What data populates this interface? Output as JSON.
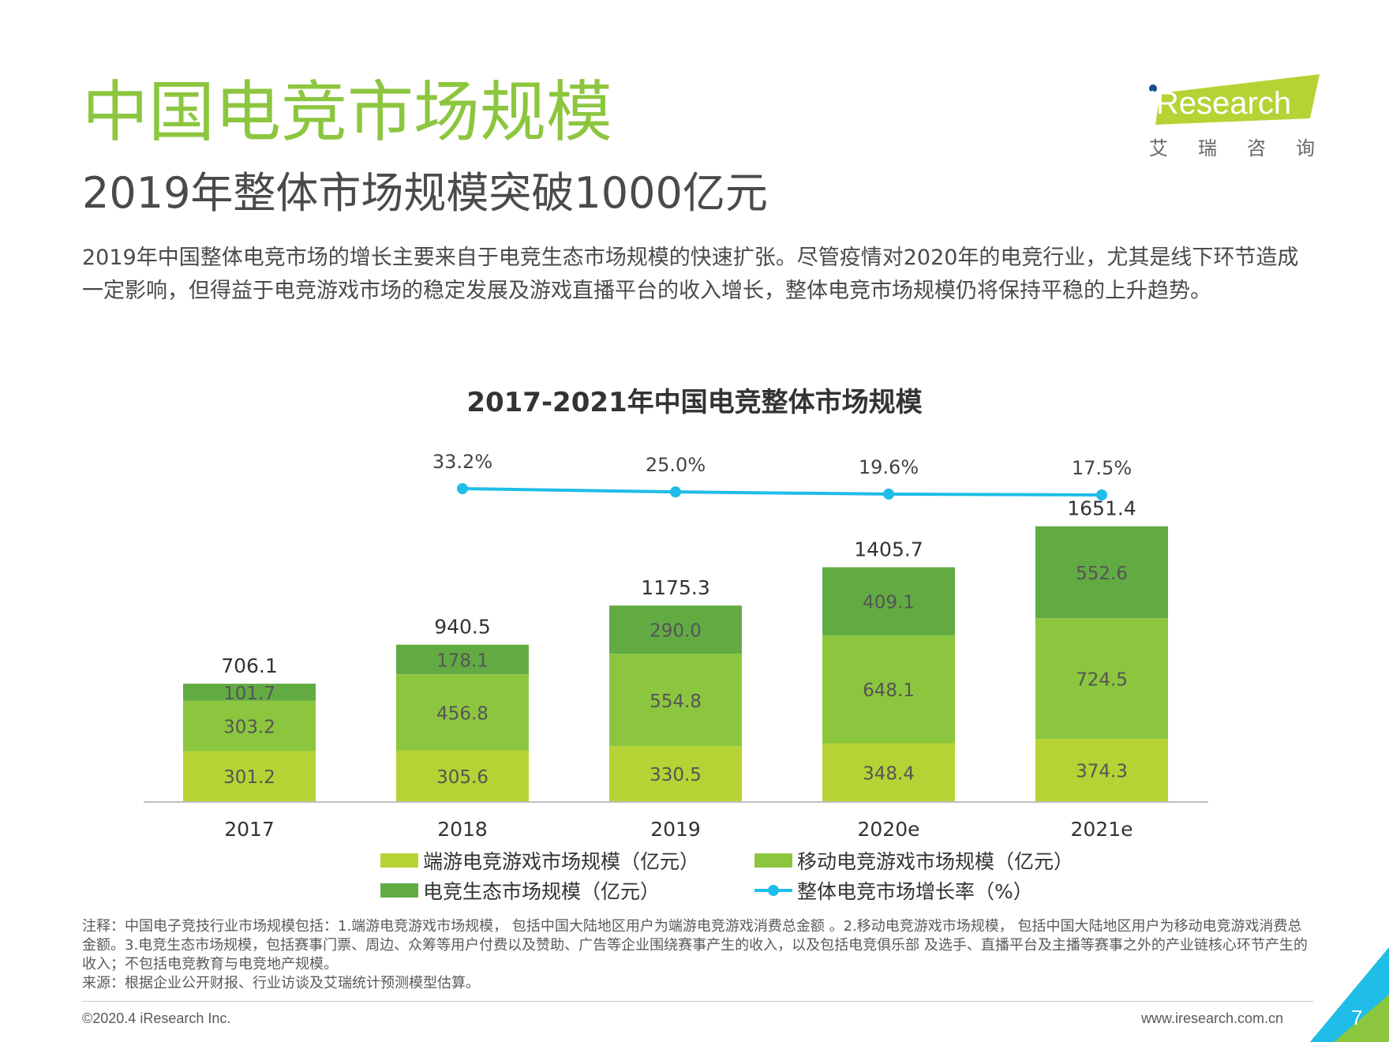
{
  "header": {
    "title": "中国电竞市场规模",
    "subtitle": "2019年整体市场规模突破1000亿元",
    "paragraph": "2019年中国整体电竞市场的增长主要来自于电竞生态市场规模的快速扩张。尽管疫情对2020年的电竞行业，尤其是线下环节造成一定影响，但得益于电竞游戏市场的稳定发展及游戏直播平台的收入增长，整体电竞市场规模仍将保持平稳的上升趋势。"
  },
  "logo": {
    "text": "iResearch",
    "cn": "艾瑞咨询"
  },
  "chart_data": {
    "type": "bar",
    "stacked": true,
    "title": "2017-2021年中国电竞整体市场规模",
    "categories": [
      "2017",
      "2018",
      "2019",
      "2020e",
      "2021e"
    ],
    "series": [
      {
        "name": "端游电竞游戏市场规模（亿元）",
        "type": "bar",
        "color": "#b5d334",
        "values": [
          301.2,
          305.6,
          330.5,
          348.4,
          374.3
        ]
      },
      {
        "name": "移动电竞游戏市场规模（亿元）",
        "type": "bar",
        "color": "#8cc63f",
        "values": [
          303.2,
          456.8,
          554.8,
          648.1,
          724.5
        ]
      },
      {
        "name": "电竞生态市场规模（亿元）",
        "type": "bar",
        "color": "#62ab43",
        "values": [
          101.7,
          178.1,
          290.0,
          409.1,
          552.6
        ]
      },
      {
        "name": "整体电竞市场增长率（%）",
        "type": "line",
        "color": "#1fbde8",
        "x": [
          "2018",
          "2019",
          "2020e",
          "2021e"
        ],
        "values": [
          33.2,
          25.0,
          19.6,
          17.5
        ],
        "labels": [
          "33.2%",
          "25.0%",
          "19.6%",
          "17.5%"
        ]
      }
    ],
    "totals": [
      706.1,
      940.5,
      1175.3,
      1405.7,
      1651.4
    ],
    "segment_labels": [
      [
        "301.2",
        "305.6",
        "330.5",
        "348.4",
        "374.3"
      ],
      [
        "303.2",
        "456.8",
        "554.8",
        "648.1",
        "724.5"
      ],
      [
        "101.7",
        "178.1",
        "290.0",
        "409.1",
        "552.6"
      ]
    ],
    "total_labels": [
      "706.1",
      "940.5",
      "1175.3",
      "1405.7",
      "1651.4"
    ],
    "legend_position": "bottom"
  },
  "legend": [
    {
      "label": "端游电竞游戏市场规模（亿元）",
      "color": "#b5d334"
    },
    {
      "label": "移动电竞游戏市场规模（亿元）",
      "color": "#8cc63f"
    },
    {
      "label": "电竞生态市场规模（亿元）",
      "color": "#62ab43"
    },
    {
      "label": "整体电竞市场增长率（%）",
      "color": "#1fbde8"
    }
  ],
  "note": {
    "annotation": "注释：中国电子竞技行业市场规模包括：1.端游电竞游戏市场规模， 包括中国大陆地区用户为端游电竞游戏消费总金额 。2.移动电竞游戏市场规模， 包括中国大陆地区用户为移动电竞游戏消费总金额。3.电竞生态市场规模，包括赛事门票、周边、众筹等用户付费以及赞助、广告等企业围绕赛事产生的收入，以及包括电竞俱乐部 及选手、直播平台及主播等赛事之外的产业链核心环节产生的收入；不包括电竞教育与电竞地产规模。",
    "source": "来源：根据企业公开财报、行业访谈及艾瑞统计预测模型估算。"
  },
  "footer": {
    "copyright": "©2020.4 iResearch Inc.",
    "website": "www.iresearch.com.cn",
    "page_number": "7"
  }
}
